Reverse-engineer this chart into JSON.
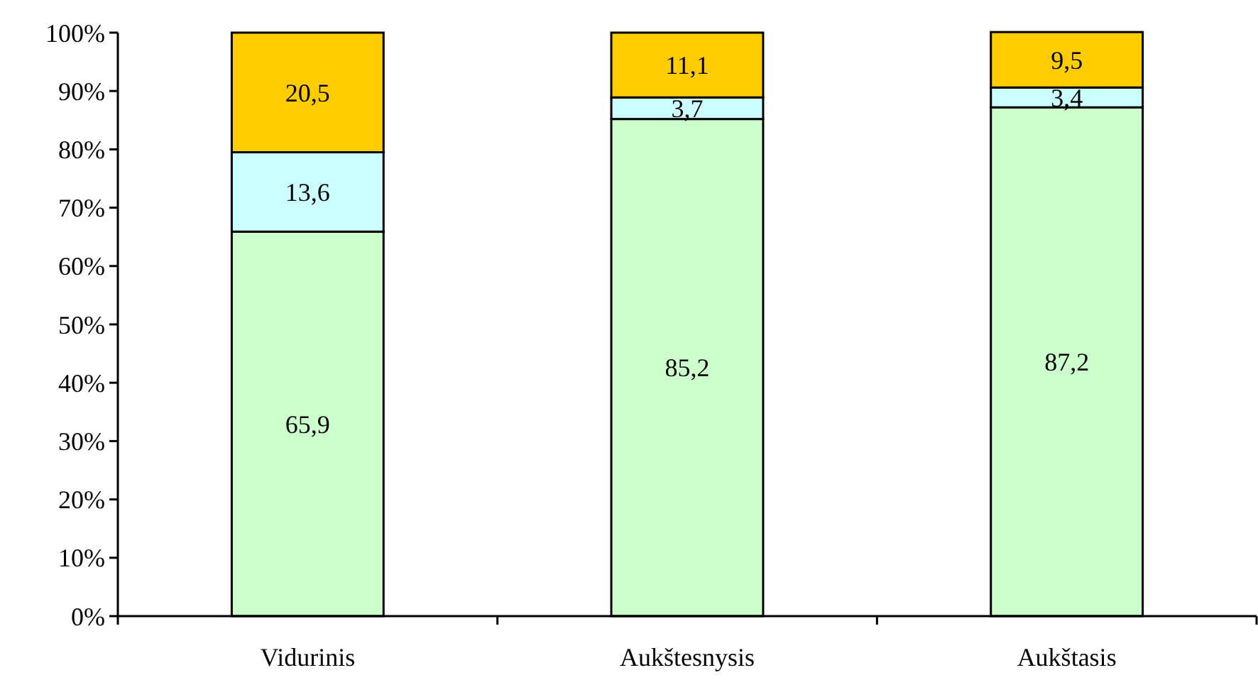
{
  "chart_data": {
    "type": "bar",
    "stacked": true,
    "categories": [
      "Vidurinis",
      "Aukštesnysis",
      "Aukštasis"
    ],
    "series": [
      {
        "color": "#ccffcc",
        "values": [
          65.9,
          85.2,
          87.2
        ],
        "value_labels": [
          "65,9",
          "85,2",
          "87,2"
        ]
      },
      {
        "color": "#ccffff",
        "values": [
          13.6,
          3.7,
          3.4
        ],
        "value_labels": [
          "13,6",
          "3,7",
          "3,4"
        ]
      },
      {
        "color": "#ffcc00",
        "values": [
          20.5,
          11.1,
          9.5
        ],
        "value_labels": [
          "20,5",
          "11,1",
          "9,5"
        ]
      }
    ],
    "ylim": [
      0,
      100
    ],
    "yticks": [
      {
        "value": 0,
        "label": "0%"
      },
      {
        "value": 10,
        "label": "10%"
      },
      {
        "value": 20,
        "label": "20%"
      },
      {
        "value": 30,
        "label": "30%"
      },
      {
        "value": 40,
        "label": "40%"
      },
      {
        "value": 50,
        "label": "50%"
      },
      {
        "value": 60,
        "label": "60%"
      },
      {
        "value": 70,
        "label": "70%"
      },
      {
        "value": 80,
        "label": "80%"
      },
      {
        "value": 90,
        "label": "90%"
      },
      {
        "value": 100,
        "label": "100%"
      }
    ],
    "grid": false
  }
}
